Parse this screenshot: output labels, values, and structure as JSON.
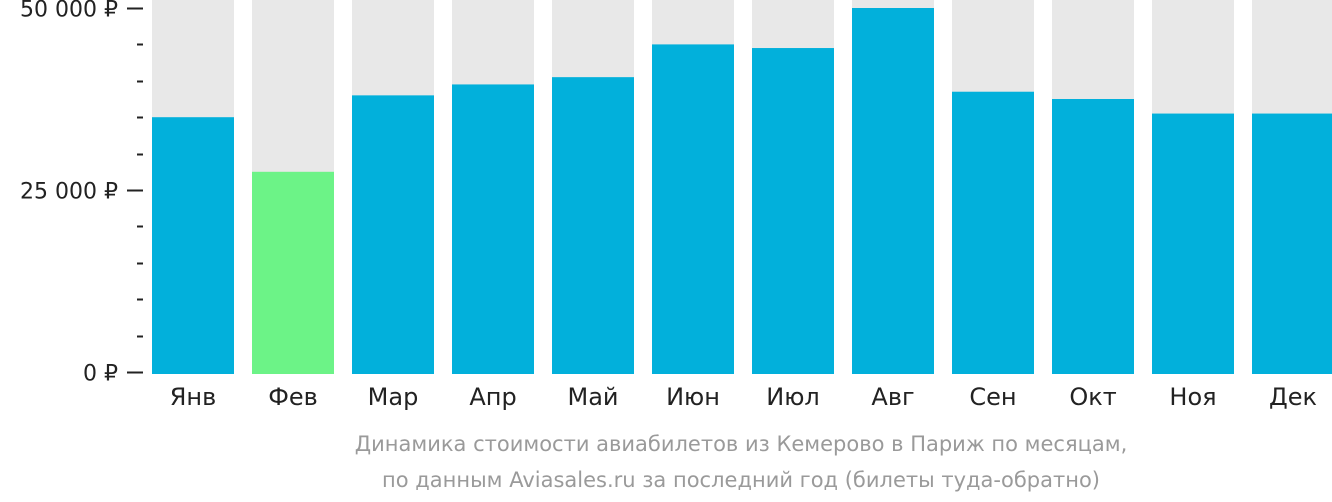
{
  "chart_data": {
    "type": "bar",
    "categories": [
      "Янв",
      "Фев",
      "Мар",
      "Апр",
      "Май",
      "Июн",
      "Июл",
      "Авг",
      "Сен",
      "Окт",
      "Ноя",
      "Дек"
    ],
    "values": [
      35000,
      27500,
      38000,
      39500,
      40500,
      45000,
      44500,
      50000,
      38500,
      37500,
      35500,
      35500
    ],
    "highlight_index": 1,
    "ylim": [
      0,
      50000
    ],
    "y_ticks": [
      {
        "value": 0,
        "label": "0 ₽"
      },
      {
        "value": 25000,
        "label": "25 000 ₽"
      },
      {
        "value": 50000,
        "label": "50 000 ₽"
      }
    ],
    "minor_tick_step": 5000,
    "grid": false,
    "colors": {
      "bar": "#02b0db",
      "highlight": "#6cf387",
      "background_bar": "#e8e8e8",
      "axis": "#222222"
    }
  },
  "caption": {
    "line1": "Динамика стоимости авиабилетов из Кемерово в Париж по месяцам,",
    "line2": "по данным Aviasales.ru за последний год (билеты туда-обратно)"
  }
}
